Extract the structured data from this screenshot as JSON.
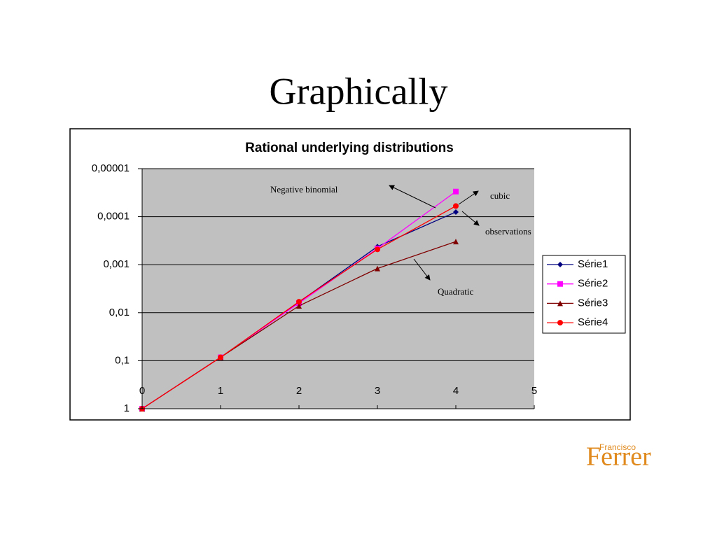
{
  "slide": {
    "title": "Graphically",
    "logo": {
      "small": "Francisco",
      "large": "Ferrer"
    }
  },
  "chart_data": {
    "type": "line",
    "title": "Rational underlying distributions",
    "x": [
      0,
      1,
      2,
      3,
      4
    ],
    "series": [
      {
        "name": "Série1",
        "color": "#000080",
        "marker": "diamond",
        "values": [
          1,
          0.085,
          0.006,
          0.00042,
          8e-05
        ]
      },
      {
        "name": "Série2",
        "color": "#ff00ff",
        "marker": "square",
        "values": [
          1,
          0.085,
          0.0063,
          0.00046,
          3e-05
        ]
      },
      {
        "name": "Série3",
        "color": "#800000",
        "marker": "triangle",
        "values": [
          1,
          0.085,
          0.0072,
          0.0012,
          0.00033
        ]
      },
      {
        "name": "Série4",
        "color": "#ff0000",
        "marker": "circle",
        "values": [
          1,
          0.085,
          0.0059,
          0.00048,
          6e-05
        ]
      }
    ],
    "xlim": [
      0,
      5
    ],
    "xticks": [
      0,
      1,
      2,
      3,
      4,
      5
    ],
    "ylim": [
      1,
      1e-05
    ],
    "log_y": true,
    "yticks": [
      1,
      {
        "value": 0.1,
        "label": "0,1"
      },
      {
        "value": 0.01,
        "label": "0,01"
      },
      {
        "value": 0.001,
        "label": "0,001"
      },
      {
        "value": 0.0001,
        "label": "0,0001"
      },
      {
        "value": 1e-05,
        "label": "0,00001"
      }
    ],
    "grid": true,
    "legend": "right",
    "annotations": [
      "Negative binomial",
      "cubic",
      "observations",
      "Quadratic"
    ]
  }
}
